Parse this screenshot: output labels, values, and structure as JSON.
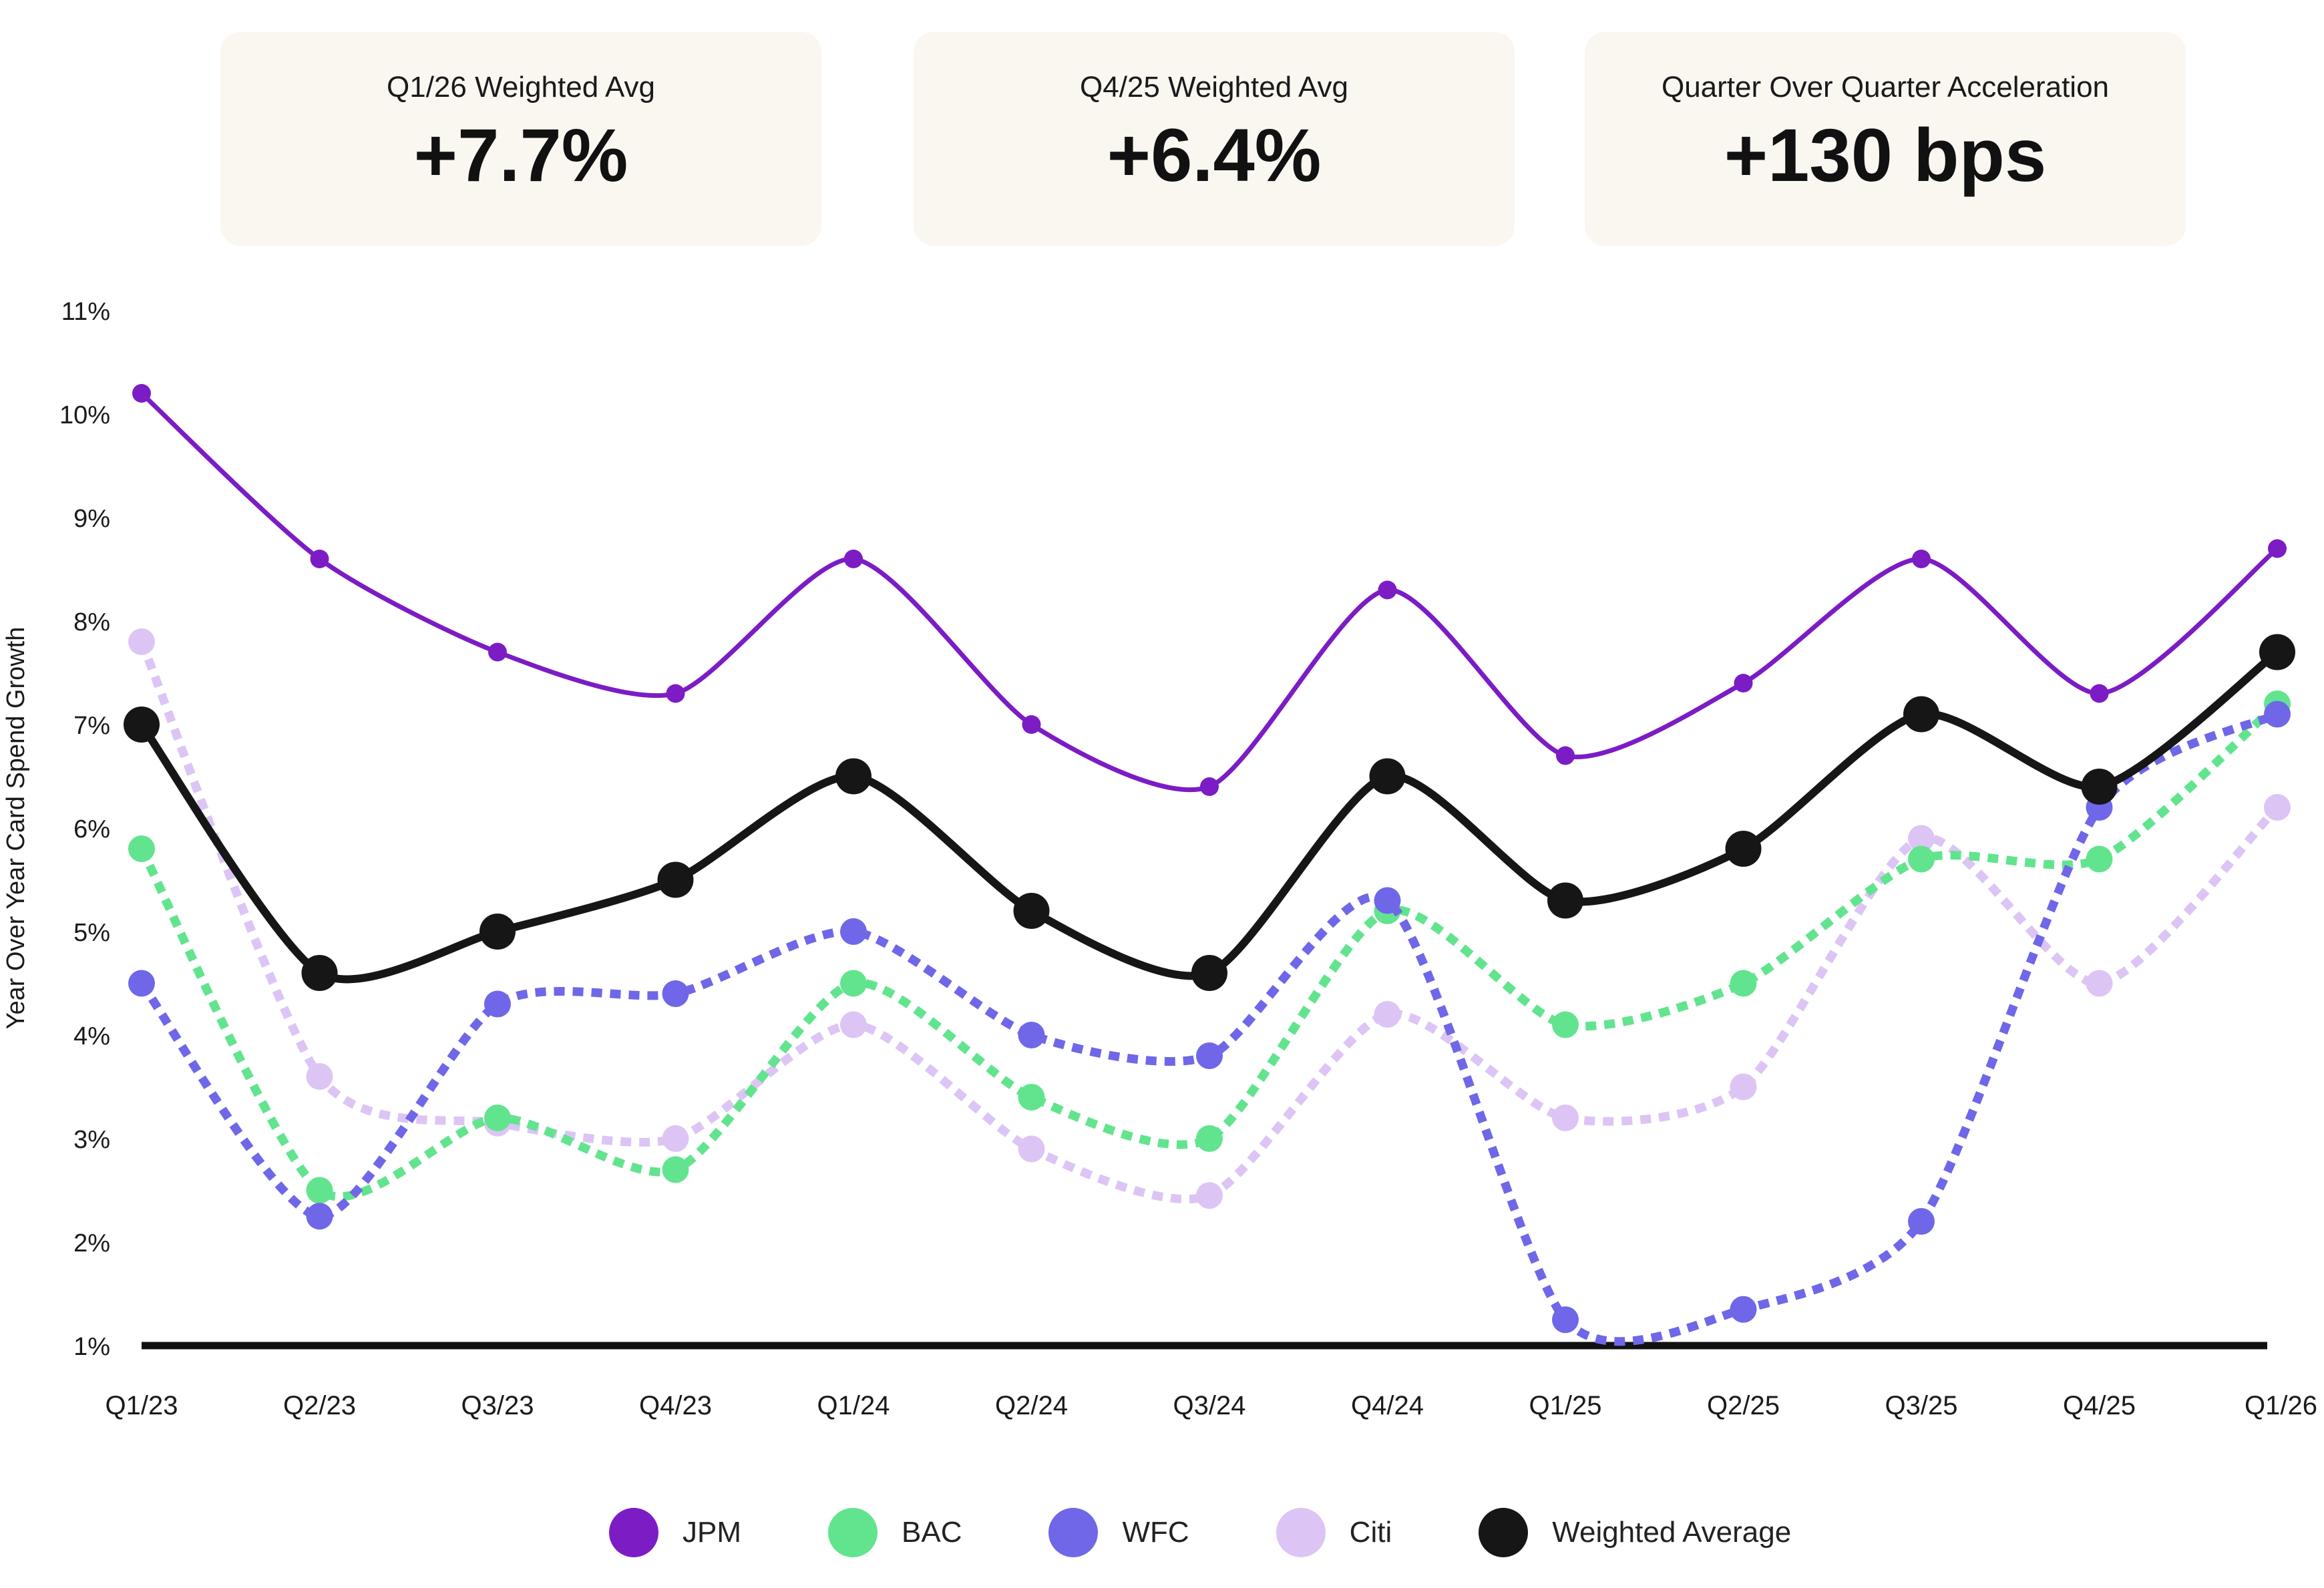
{
  "kpis": [
    {
      "label": "Q1/26 Weighted Avg",
      "value": "+7.7%"
    },
    {
      "label": "Q4/25 Weighted Avg",
      "value": "+6.4%"
    },
    {
      "label": "Quarter Over Quarter Acceleration",
      "value": "+130 bps"
    }
  ],
  "chart_data": {
    "type": "line",
    "title": "",
    "xlabel": "",
    "ylabel": "Year Over Year Card Spend Growth",
    "categories": [
      "Q1/23",
      "Q2/23",
      "Q3/23",
      "Q4/23",
      "Q1/24",
      "Q2/24",
      "Q3/24",
      "Q4/24",
      "Q1/25",
      "Q2/25",
      "Q3/25",
      "Q4/25",
      "Q1/26"
    ],
    "y_ticks": [
      "1%",
      "2%",
      "3%",
      "4%",
      "5%",
      "6%",
      "7%",
      "8%",
      "9%",
      "10%",
      "11%"
    ],
    "ylim": [
      1,
      11
    ],
    "grid": false,
    "legend_position": "bottom",
    "series": [
      {
        "name": "Citi",
        "color": "#dcc5f5",
        "style": "dashed",
        "values": [
          7.8,
          3.6,
          3.15,
          3.0,
          4.1,
          2.9,
          2.45,
          4.2,
          3.2,
          3.5,
          5.9,
          4.5,
          6.2
        ]
      },
      {
        "name": "BAC",
        "color": "#62e48f",
        "style": "dashed",
        "values": [
          5.8,
          2.5,
          3.2,
          2.7,
          4.5,
          3.4,
          3.0,
          5.2,
          4.1,
          4.5,
          5.7,
          5.7,
          7.2
        ]
      },
      {
        "name": "WFC",
        "color": "#6f67e8",
        "style": "dashed",
        "values": [
          4.5,
          2.25,
          4.3,
          4.4,
          5.0,
          4.0,
          3.8,
          5.3,
          1.25,
          1.35,
          2.2,
          6.2,
          7.1
        ]
      },
      {
        "name": "JPM",
        "color": "#7c1cc4",
        "style": "solid",
        "values": [
          10.2,
          8.6,
          7.7,
          7.3,
          8.6,
          7.0,
          6.4,
          8.3,
          6.7,
          7.4,
          8.6,
          7.3,
          8.7
        ]
      },
      {
        "name": "Weighted Average",
        "color": "#161616",
        "style": "solid",
        "values": [
          7.0,
          4.6,
          5.0,
          5.5,
          6.5,
          5.2,
          4.6,
          6.5,
          5.3,
          5.8,
          7.1,
          6.4,
          7.7
        ]
      }
    ]
  },
  "legend": [
    {
      "name": "JPM",
      "color": "#7c1cc4"
    },
    {
      "name": "BAC",
      "color": "#62e48f"
    },
    {
      "name": "WFC",
      "color": "#6f67e8"
    },
    {
      "name": "Citi",
      "color": "#dcc5f5"
    },
    {
      "name": "Weighted Average",
      "color": "#161616"
    }
  ]
}
